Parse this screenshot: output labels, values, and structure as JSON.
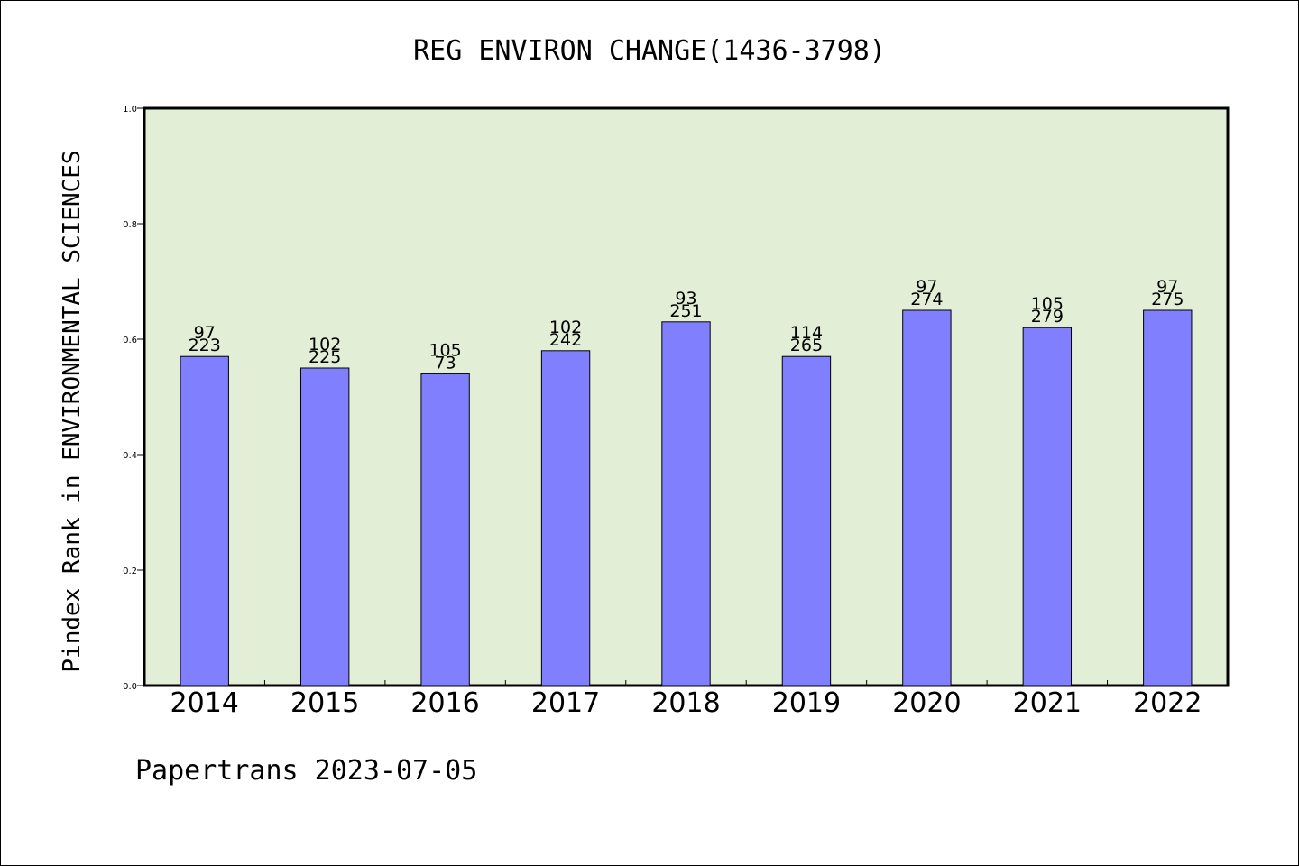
{
  "chart_data": {
    "type": "bar",
    "title": "REG ENVIRON CHANGE(1436-3798)",
    "ylabel": "Pindex Rank in ENVIRONMENTAL SCIENCES",
    "xlabel": "",
    "ylim": [
      0.0,
      1.0
    ],
    "yticks": [
      "0.0",
      "0.2",
      "0.4",
      "0.6",
      "0.8",
      "1.0"
    ],
    "grid": false,
    "categories": [
      "2014",
      "2015",
      "2016",
      "2017",
      "2018",
      "2019",
      "2020",
      "2021",
      "2022"
    ],
    "values": [
      0.57,
      0.55,
      0.54,
      0.58,
      0.63,
      0.57,
      0.65,
      0.62,
      0.65
    ],
    "label_top": [
      "97",
      "102",
      "105",
      "102",
      "93",
      "114",
      "97",
      "105",
      "97"
    ],
    "label_bottom": [
      "223",
      "225",
      "73",
      "242",
      "251",
      "265",
      "274",
      "279",
      "275"
    ],
    "colors": {
      "bar": "#8080ff",
      "plot_bg": "#e2efd6",
      "axis": "#000000"
    }
  },
  "footer": "Papertrans 2023-07-05"
}
